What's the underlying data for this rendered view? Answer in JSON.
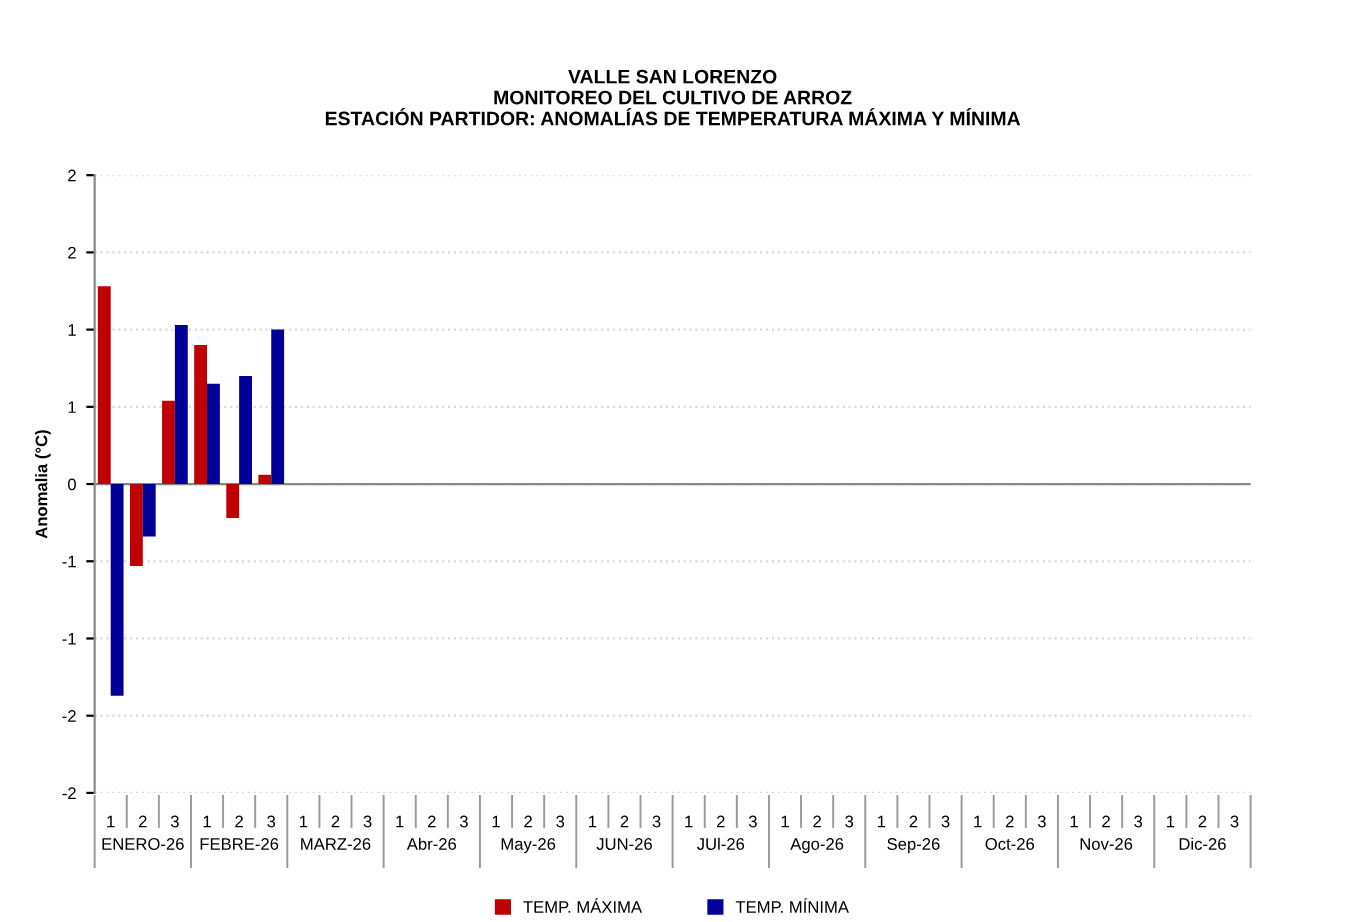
{
  "chart_data": {
    "type": "bar",
    "title": "VALLE SAN LORENZO\nMONITOREO DEL CULTIVO DE ARROZ\nESTACIÓN PARTIDOR: ANOMALÍAS DE TEMPERATURA MÁXIMA Y MÍNIMA",
    "ylabel": "Anomalia (°C)",
    "categories": [
      "1",
      "2",
      "3",
      "1",
      "2",
      "3",
      "1",
      "2",
      "3",
      "1",
      "2",
      "3",
      "1",
      "2",
      "3",
      "1",
      "2",
      "3",
      "1",
      "2",
      "3",
      "1",
      "2",
      "3",
      "1",
      "2",
      "3",
      "1",
      "2",
      "3",
      "1",
      "2",
      "3",
      "1",
      "2",
      "3"
    ],
    "annotations": [
      "ENERO-26",
      "FEBRE-26",
      "MARZ-26",
      "Abr-26",
      "May-26",
      "JUN-26",
      "JUl-26",
      "Ago-26",
      "Sep-26",
      "Oct-26",
      "Nov-26",
      "Dic-26"
    ],
    "series": [
      {
        "name": "TEMP. MÁXIMA",
        "color": "#c00000",
        "values": [
          1.28,
          -0.53,
          0.54,
          0.9,
          -0.22,
          0.06,
          null,
          null,
          null,
          null,
          null,
          null,
          null,
          null,
          null,
          null,
          null,
          null,
          null,
          null,
          null,
          null,
          null,
          null,
          null,
          null,
          null,
          null,
          null,
          null,
          null,
          null,
          null,
          null,
          null,
          null
        ]
      },
      {
        "name": "TEMP. MÍNIMA",
        "color": "#000099",
        "values": [
          -1.37,
          -0.34,
          1.03,
          0.65,
          0.7,
          1.0,
          null,
          null,
          null,
          null,
          null,
          null,
          null,
          null,
          null,
          null,
          null,
          null,
          null,
          null,
          null,
          null,
          null,
          null,
          null,
          null,
          null,
          null,
          null,
          null,
          null,
          null,
          null,
          null,
          null,
          null
        ]
      }
    ],
    "ylim": [
      -2,
      2.0
    ],
    "yticks": [
      {
        "value": -2,
        "label": "-2"
      },
      {
        "value": -1.5,
        "label": "-2"
      },
      {
        "value": -1,
        "label": "-1"
      },
      {
        "value": -0.5,
        "label": "-1"
      },
      {
        "value": 0,
        "label": "0"
      },
      {
        "value": 0.5,
        "label": "1"
      },
      {
        "value": 1,
        "label": "1"
      },
      {
        "value": 1.5,
        "label": "2"
      },
      {
        "value": 2,
        "label": "2"
      }
    ],
    "grid": "y",
    "legend": "bottom"
  }
}
